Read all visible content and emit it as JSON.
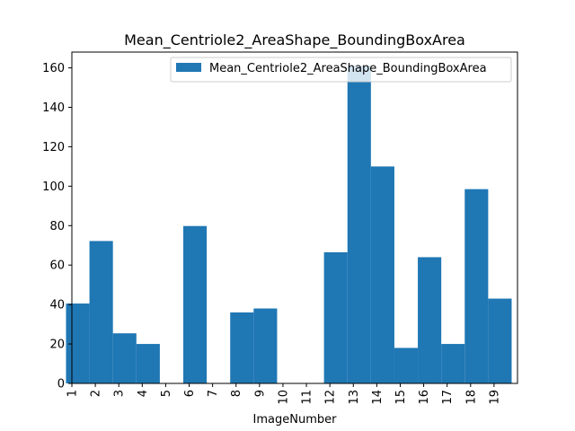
{
  "chart_data": {
    "type": "bar",
    "title": "Mean_Centriole2_AreaShape_BoundingBoxArea",
    "xlabel": "ImageNumber",
    "ylabel": "",
    "categories": [
      "1",
      "2",
      "3",
      "4",
      "5",
      "6",
      "7",
      "8",
      "9",
      "10",
      "11",
      "12",
      "13",
      "14",
      "15",
      "16",
      "17",
      "18",
      "19"
    ],
    "x_tick_labels": [
      "1",
      "2",
      "3",
      "4",
      "5",
      "6",
      "7",
      "8",
      "9",
      "10",
      "11",
      "12",
      "13",
      "14",
      "15",
      "16",
      "17",
      "18",
      "19"
    ],
    "series": [
      {
        "name": "Mean_Centriole2_AreaShape_BoundingBoxArea",
        "color": "#1f77b4",
        "x": [
          1,
          2,
          3,
          4,
          6,
          8,
          9,
          12,
          13,
          14,
          15,
          16,
          17,
          18,
          19
        ],
        "values": [
          40.5,
          72.2,
          25.4,
          20.0,
          79.8,
          36.0,
          38.0,
          66.5,
          161.0,
          110.0,
          18.0,
          64.0,
          20.0,
          98.5,
          43.0
        ]
      }
    ],
    "ylim": [
      0,
      168
    ],
    "y_ticks": [
      0,
      20,
      40,
      60,
      80,
      100,
      120,
      140,
      160
    ],
    "xlim": [
      1,
      20
    ],
    "grid": false,
    "legend_position": "top-right"
  }
}
